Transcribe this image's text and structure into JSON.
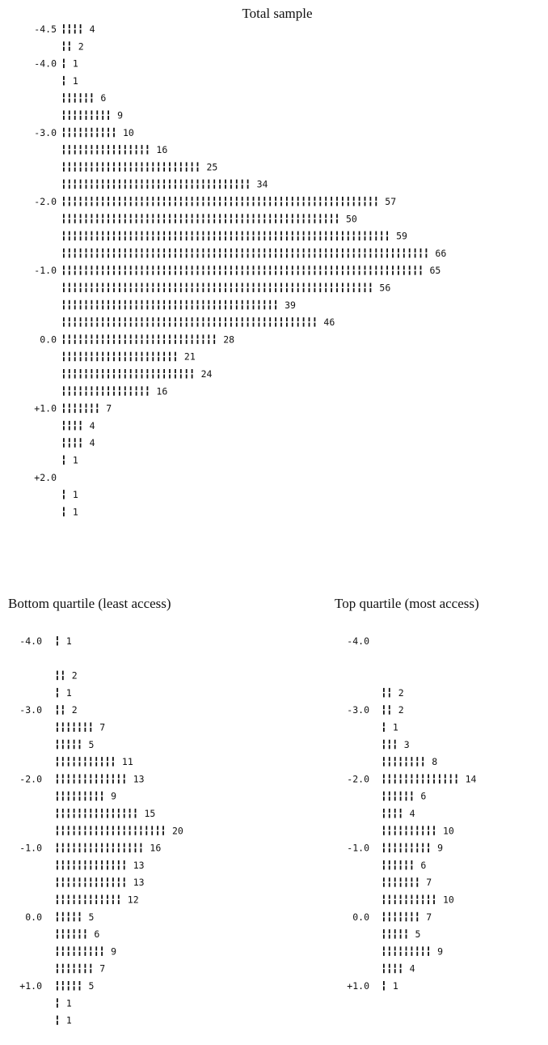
{
  "chart_data": [
    {
      "type": "bar",
      "title": "Total sample",
      "tick_labels": [
        "-4.5",
        "-4.0",
        "-3.0",
        "-2.0",
        "-1.0",
        "0.0",
        "+1.0",
        "+2.0"
      ],
      "bins": [
        {
          "tick": "-4.5",
          "value": 4
        },
        {
          "tick": "",
          "value": 2
        },
        {
          "tick": "-4.0",
          "value": 1
        },
        {
          "tick": "",
          "value": 1
        },
        {
          "tick": "",
          "value": 6
        },
        {
          "tick": "",
          "value": 9
        },
        {
          "tick": "-3.0",
          "value": 10
        },
        {
          "tick": "",
          "value": 16
        },
        {
          "tick": "",
          "value": 25
        },
        {
          "tick": "",
          "value": 34
        },
        {
          "tick": "-2.0",
          "value": 57
        },
        {
          "tick": "",
          "value": 50
        },
        {
          "tick": "",
          "value": 59
        },
        {
          "tick": "",
          "value": 66
        },
        {
          "tick": "-1.0",
          "value": 65
        },
        {
          "tick": "",
          "value": 56
        },
        {
          "tick": "",
          "value": 39
        },
        {
          "tick": "",
          "value": 46
        },
        {
          "tick": "0.0",
          "value": 28
        },
        {
          "tick": "",
          "value": 21
        },
        {
          "tick": "",
          "value": 24
        },
        {
          "tick": "",
          "value": 16
        },
        {
          "tick": "+1.0",
          "value": 7
        },
        {
          "tick": "",
          "value": 4
        },
        {
          "tick": "",
          "value": 4
        },
        {
          "tick": "",
          "value": 1
        },
        {
          "tick": "+2.0",
          "value": null
        },
        {
          "tick": "",
          "value": 1
        },
        {
          "tick": "",
          "value": 1
        }
      ]
    },
    {
      "type": "bar",
      "title": "Bottom quartile (least access)",
      "tick_labels": [
        "-4.0",
        "-3.0",
        "-2.0",
        "-1.0",
        "0.0",
        "+1.0"
      ],
      "bins": [
        {
          "tick": "-4.0",
          "value": 1
        },
        {
          "tick": "",
          "value": null
        },
        {
          "tick": "",
          "value": 2
        },
        {
          "tick": "",
          "value": 1
        },
        {
          "tick": "-3.0",
          "value": 2
        },
        {
          "tick": "",
          "value": 7
        },
        {
          "tick": "",
          "value": 5
        },
        {
          "tick": "",
          "value": 11
        },
        {
          "tick": "-2.0",
          "value": 13
        },
        {
          "tick": "",
          "value": 9
        },
        {
          "tick": "",
          "value": 15
        },
        {
          "tick": "",
          "value": 20
        },
        {
          "tick": "-1.0",
          "value": 16
        },
        {
          "tick": "",
          "value": 13
        },
        {
          "tick": "",
          "value": 13
        },
        {
          "tick": "",
          "value": 12
        },
        {
          "tick": "0.0",
          "value": 5
        },
        {
          "tick": "",
          "value": 6
        },
        {
          "tick": "",
          "value": 9
        },
        {
          "tick": "",
          "value": 7
        },
        {
          "tick": "+1.0",
          "value": 5
        },
        {
          "tick": "",
          "value": 1
        },
        {
          "tick": "",
          "value": 1
        }
      ]
    },
    {
      "type": "bar",
      "title": "Top quartile (most access)",
      "tick_labels": [
        "-4.0",
        "-3.0",
        "-2.0",
        "-1.0",
        "0.0",
        "+1.0"
      ],
      "bins": [
        {
          "tick": "-4.0",
          "value": null
        },
        {
          "tick": "",
          "value": null
        },
        {
          "tick": "",
          "value": null
        },
        {
          "tick": "",
          "value": 2
        },
        {
          "tick": "-3.0",
          "value": 2
        },
        {
          "tick": "",
          "value": 1
        },
        {
          "tick": "",
          "value": 3
        },
        {
          "tick": "",
          "value": 8
        },
        {
          "tick": "-2.0",
          "value": 14
        },
        {
          "tick": "",
          "value": 6
        },
        {
          "tick": "",
          "value": 4
        },
        {
          "tick": "",
          "value": 10
        },
        {
          "tick": "-1.0",
          "value": 9
        },
        {
          "tick": "",
          "value": 6
        },
        {
          "tick": "",
          "value": 7
        },
        {
          "tick": "",
          "value": 10
        },
        {
          "tick": "0.0",
          "value": 7
        },
        {
          "tick": "",
          "value": 5
        },
        {
          "tick": "",
          "value": 9
        },
        {
          "tick": "",
          "value": 4
        },
        {
          "tick": "+1.0",
          "value": 1
        }
      ]
    }
  ]
}
